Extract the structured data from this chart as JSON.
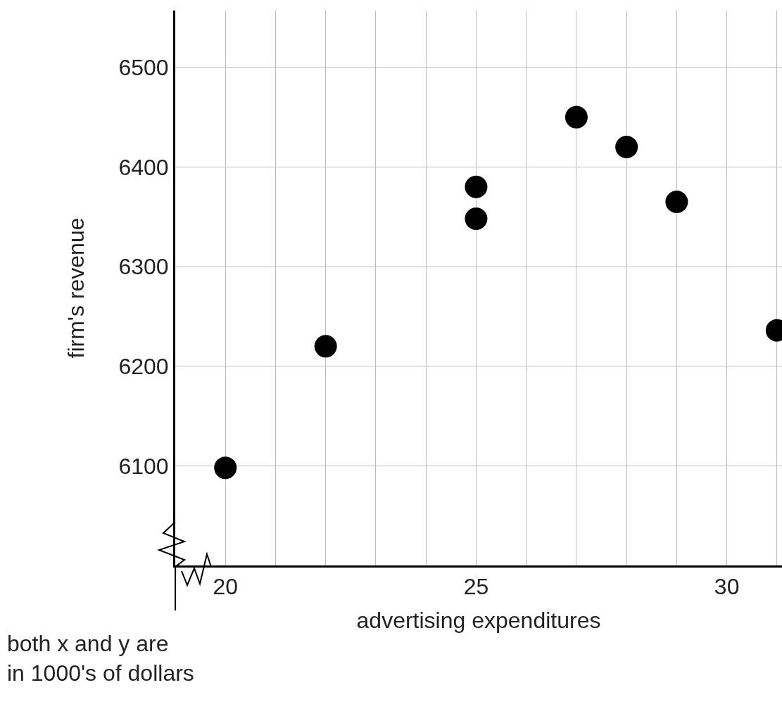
{
  "chart_data": {
    "type": "scatter",
    "xlabel": "advertising expenditures",
    "ylabel": "firm's revenue",
    "annotations": [
      "both x and y are\nin 1000's of dollars"
    ],
    "x": [
      20,
      22,
      25,
      25,
      27,
      28,
      29,
      31
    ],
    "values": [
      6098,
      6220,
      6380,
      6348,
      6450,
      6420,
      6365,
      6236
    ],
    "color": "#000000",
    "marker": "circle",
    "xlim": [
      19,
      31.1
    ],
    "xticks": [
      20,
      {
        "value": 21,
        "label": null
      },
      {
        "value": 22,
        "label": null
      },
      {
        "value": 23,
        "label": null
      },
      {
        "value": 24,
        "label": null
      },
      25,
      {
        "value": 26,
        "label": null
      },
      {
        "value": 27,
        "label": null
      },
      {
        "value": 28,
        "label": null
      },
      {
        "value": 29,
        "label": null
      },
      30,
      {
        "value": 31,
        "label": null
      }
    ],
    "ylim": [
      6000,
      6557
    ],
    "yticks": [
      6100,
      6200,
      6300,
      6400,
      6500
    ],
    "grid": true
  }
}
